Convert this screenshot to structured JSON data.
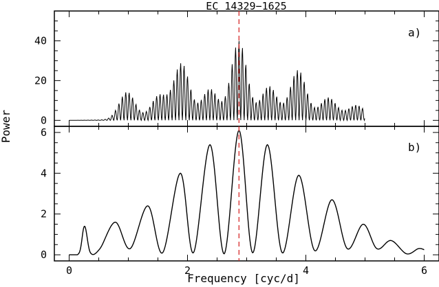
{
  "chart_data": {
    "type": "line",
    "title": "EC 14329−1625",
    "xlabel": "Frequency [cyc/d]",
    "ylabel": "Power",
    "xlim": [
      -0.25,
      6.25
    ],
    "x_ticks": [
      "0",
      "2",
      "4",
      "6"
    ],
    "marker_x": 2.87,
    "marker_color": "#d62a2a",
    "line_color": "#000000",
    "panels": [
      {
        "label": "a)",
        "ylim": [
          -3,
          55
        ],
        "y_ticks": [
          "0",
          "20",
          "40"
        ],
        "x_range": [
          0.0,
          5.0
        ],
        "fine_period": 0.058,
        "envelope_peaks": [
          {
            "x": 0.98,
            "y": 14
          },
          {
            "x": 1.52,
            "y": 12
          },
          {
            "x": 1.9,
            "y": 28
          },
          {
            "x": 2.38,
            "y": 15
          },
          {
            "x": 2.87,
            "y": 39
          },
          {
            "x": 3.38,
            "y": 16
          },
          {
            "x": 3.87,
            "y": 24
          },
          {
            "x": 4.38,
            "y": 10
          },
          {
            "x": 4.85,
            "y": 6
          }
        ]
      },
      {
        "label": "b)",
        "ylim": [
          -0.3,
          6.3
        ],
        "y_ticks": [
          "0",
          "2",
          "4",
          "6"
        ],
        "x_range": [
          0.0,
          6.0
        ],
        "series": [
          {
            "x": [
              0.0,
              0.17,
              0.26,
              0.36,
              0.52,
              0.78,
              1.03,
              1.33,
              1.58,
              1.88,
              2.1,
              2.38,
              2.62,
              2.87,
              3.1,
              3.35,
              3.6,
              3.88,
              4.15,
              4.44,
              4.7,
              4.97,
              5.2,
              5.44,
              5.7,
              5.9,
              6.0
            ],
            "y": [
              0.0,
              0.1,
              1.4,
              0.1,
              0.3,
              1.6,
              0.3,
              2.4,
              0.1,
              4.0,
              0.1,
              5.4,
              0.05,
              6.1,
              0.1,
              5.4,
              0.1,
              3.9,
              0.2,
              2.7,
              0.3,
              1.5,
              0.3,
              0.7,
              0.05,
              0.3,
              0.25
            ]
          }
        ]
      }
    ]
  }
}
